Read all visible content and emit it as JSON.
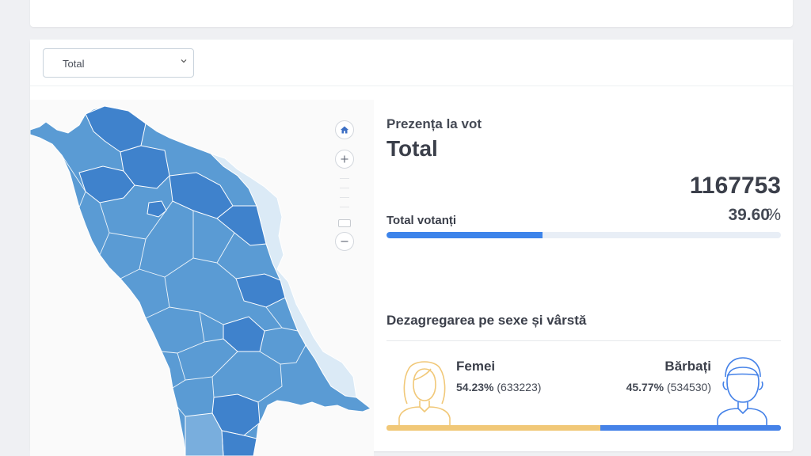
{
  "filter": {
    "selected": "Total"
  },
  "colors": {
    "accent": "#3d84ea",
    "female": "#f1c878",
    "male": "#4582e8",
    "region_dark": "#3f82cc",
    "region_medium": "#5a9bd4",
    "region_light": "#dbeaf6"
  },
  "map": {
    "controls": [
      "home-icon",
      "zoom-in-icon",
      "zoom-out-icon"
    ]
  },
  "turnout": {
    "label": "Prezența la vot",
    "title": "Total",
    "count": "1167753",
    "percent": "39.60",
    "percent_sign": "%",
    "percent_value": 39.6,
    "voters_label": "Total votanți"
  },
  "breakdown": {
    "title": "Dezagregarea pe sexe și vârstă",
    "female": {
      "label": "Femei",
      "percent": "54.23%",
      "count": "(633223)",
      "percent_value": 54.23
    },
    "male": {
      "label": "Bărbați",
      "percent": "45.77%",
      "count": "(534530)",
      "percent_value": 45.77
    }
  }
}
